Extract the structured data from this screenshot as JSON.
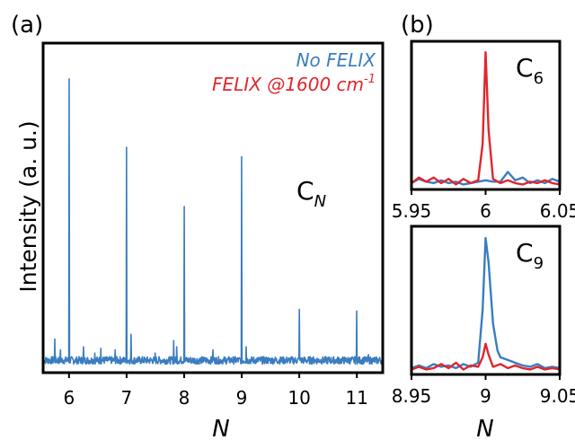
{
  "panels": [
    {
      "panel_label": "(a)",
      "annotation_main": "C",
      "annotation_sub": "N",
      "chart_data": {
        "type": "line",
        "xlabel": "N",
        "ylabel": "Intensity (a. u.)",
        "xlim": [
          5.55,
          11.45
        ],
        "ylim": [
          0,
          1.0
        ],
        "xticks": [
          "6",
          "7",
          "8",
          "9",
          "10",
          "11"
        ],
        "legend": [
          "No FELIX",
          "FELIX @1600 cm-1"
        ],
        "legend_position": "top-right",
        "series": [
          {
            "name": "No FELIX",
            "color": "#3a7dc0",
            "noise_floor": 0.015,
            "peaks": [
              {
                "x": 5.75,
                "y": 0.085
              },
              {
                "x": 5.85,
                "y": 0.05
              },
              {
                "x": 6.0,
                "y": 0.92
              },
              {
                "x": 6.25,
                "y": 0.06
              },
              {
                "x": 6.45,
                "y": 0.04
              },
              {
                "x": 6.55,
                "y": 0.055
              },
              {
                "x": 6.8,
                "y": 0.05
              },
              {
                "x": 7.0,
                "y": 0.7
              },
              {
                "x": 7.08,
                "y": 0.1
              },
              {
                "x": 7.5,
                "y": 0.04
              },
              {
                "x": 7.82,
                "y": 0.08
              },
              {
                "x": 7.87,
                "y": 0.06
              },
              {
                "x": 8.0,
                "y": 0.51
              },
              {
                "x": 8.5,
                "y": 0.05
              },
              {
                "x": 9.0,
                "y": 0.67
              },
              {
                "x": 9.08,
                "y": 0.06
              },
              {
                "x": 10.0,
                "y": 0.18
              },
              {
                "x": 11.0,
                "y": 0.175
              },
              {
                "x": 11.2,
                "y": 0.035
              }
            ]
          }
        ]
      }
    },
    {
      "panel_label": "(b)",
      "annotation_main": "C",
      "annotation_sub": "6",
      "chart_data": {
        "type": "line",
        "xlabel": "",
        "xlim": [
          5.95,
          6.05
        ],
        "ylim": [
          0,
          1.0
        ],
        "xticks": [
          "5.95",
          "6",
          "6.05"
        ],
        "series": [
          {
            "name": "No FELIX",
            "color": "#3a7dc0",
            "x": [
              5.95,
              5.955,
              5.96,
              5.965,
              5.97,
              5.975,
              5.98,
              5.985,
              5.99,
              5.995,
              6.0,
              6.005,
              6.01,
              6.015,
              6.02,
              6.025,
              6.03,
              6.035,
              6.04,
              6.045,
              6.05
            ],
            "y": [
              0.02,
              0.05,
              0.03,
              0.02,
              0.04,
              0.02,
              0.03,
              0.01,
              0.02,
              0.03,
              0.04,
              0.03,
              0.03,
              0.1,
              0.04,
              0.06,
              0.02,
              0.04,
              0.02,
              0.05,
              0.03
            ]
          },
          {
            "name": "FELIX @1600 cm-1",
            "color": "#e0262d",
            "x": [
              5.95,
              5.955,
              5.96,
              5.965,
              5.97,
              5.975,
              5.98,
              5.985,
              5.99,
              5.995,
              5.998,
              6.0,
              6.002,
              6.005,
              6.01,
              6.015,
              6.02,
              6.025,
              6.03,
              6.035,
              6.04,
              6.045,
              6.05
            ],
            "y": [
              0.02,
              0.06,
              0.03,
              0.06,
              0.02,
              0.05,
              0.01,
              0.05,
              0.02,
              0.04,
              0.3,
              0.96,
              0.4,
              0.05,
              0.02,
              0.04,
              0.02,
              0.01,
              0.03,
              0.02,
              0.04,
              0.02,
              0.01
            ]
          }
        ]
      }
    },
    {
      "panel_label": "",
      "annotation_main": "C",
      "annotation_sub": "9",
      "chart_data": {
        "type": "line",
        "xlabel": "N",
        "xlim": [
          8.95,
          9.05
        ],
        "ylim": [
          0,
          1.0
        ],
        "xticks": [
          "8.95",
          "9",
          "9.05"
        ],
        "series": [
          {
            "name": "No FELIX",
            "color": "#3a7dc0",
            "x": [
              8.95,
              8.955,
              8.96,
              8.965,
              8.97,
              8.975,
              8.98,
              8.985,
              8.99,
              8.995,
              8.998,
              9.0,
              9.002,
              9.005,
              9.008,
              9.01,
              9.015,
              9.02,
              9.025,
              9.03,
              9.035,
              9.04,
              9.045,
              9.05
            ],
            "y": [
              0.02,
              0.04,
              0.02,
              0.05,
              0.03,
              0.04,
              0.02,
              0.05,
              0.03,
              0.06,
              0.45,
              0.98,
              0.8,
              0.35,
              0.15,
              0.1,
              0.08,
              0.06,
              0.04,
              0.03,
              0.05,
              0.02,
              0.03,
              0.02
            ]
          },
          {
            "name": "FELIX @1600 cm-1",
            "color": "#e0262d",
            "x": [
              8.95,
              8.955,
              8.96,
              8.965,
              8.97,
              8.975,
              8.98,
              8.985,
              8.99,
              8.995,
              8.998,
              9.0,
              9.002,
              9.005,
              9.01,
              9.015,
              9.02,
              9.025,
              9.03,
              9.035,
              9.04,
              9.045,
              9.05
            ],
            "y": [
              0.01,
              0.03,
              0.01,
              0.02,
              0.05,
              0.02,
              0.06,
              0.01,
              0.04,
              0.03,
              0.1,
              0.2,
              0.12,
              0.03,
              0.05,
              0.02,
              0.04,
              0.02,
              0.01,
              0.03,
              0.01,
              0.02,
              0.01
            ]
          }
        ]
      }
    }
  ],
  "legend": {
    "no_felix": "No FELIX",
    "felix_prefix": "FELIX @1600 cm",
    "felix_sup": "-1"
  }
}
